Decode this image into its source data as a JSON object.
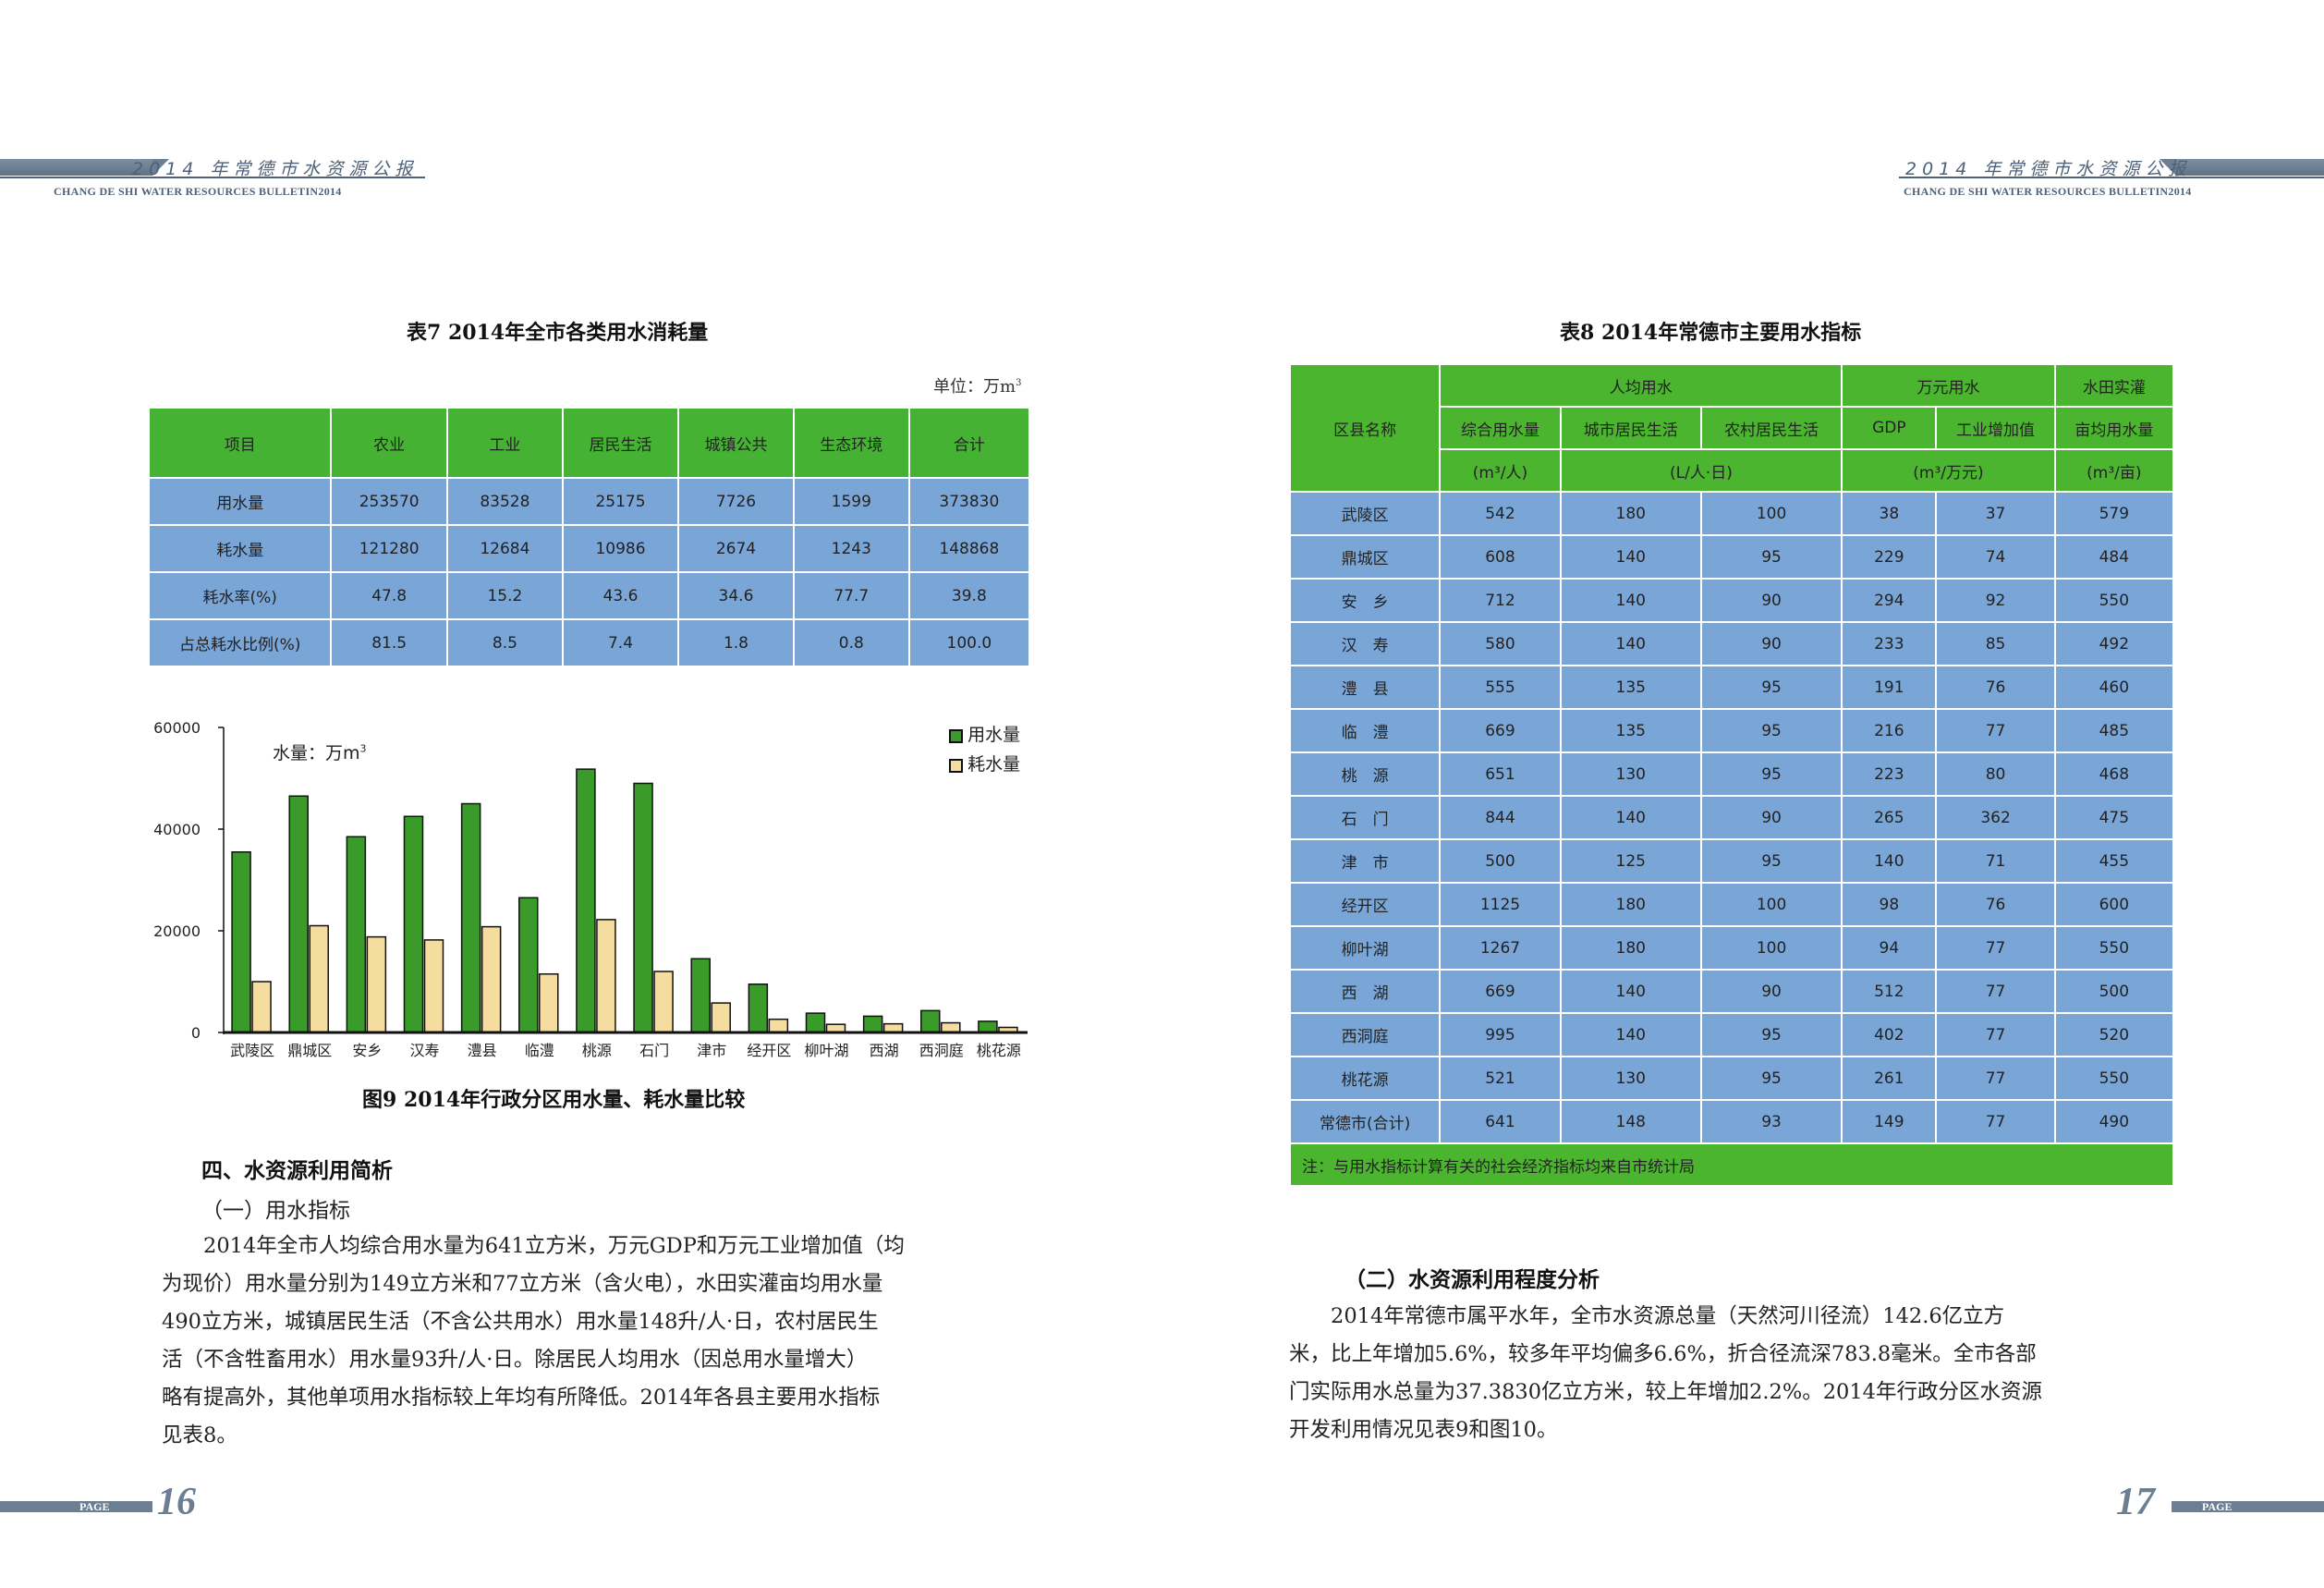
{
  "header": {
    "title": "2014 年常德市水资源公报",
    "subtitle": "CHANG DE SHI WATER RESOURCES BULLETIN2014"
  },
  "table7": {
    "caption": "表7   2014年全市各类用水消耗量",
    "unit_label": "单位：万m",
    "unit_sup": "3",
    "headers": [
      "项目",
      "农业",
      "工业",
      "居民生活",
      "城镇公共",
      "生态环境",
      "合计"
    ],
    "rows": [
      [
        "用水量",
        "253570",
        "83528",
        "25175",
        "7726",
        "1599",
        "373830"
      ],
      [
        "耗水量",
        "121280",
        "12684",
        "10986",
        "2674",
        "1243",
        "148868"
      ],
      [
        "耗水率(%)",
        "47.8",
        "15.2",
        "43.6",
        "34.6",
        "77.7",
        "39.8"
      ],
      [
        "占总耗水比例(%)",
        "81.5",
        "8.5",
        "7.4",
        "1.8",
        "0.8",
        "100.0"
      ]
    ]
  },
  "chart_data": {
    "type": "bar",
    "title": "图9   2014年行政分区用水量、耗水量比较",
    "ylabel": "水量：万m",
    "ylabel_sup": "3",
    "ylim": [
      0,
      60000
    ],
    "yticks": [
      "0",
      "20000",
      "40000",
      "60000"
    ],
    "categories": [
      "武陵区",
      "鼎城区",
      "安乡",
      "汉寿",
      "澧县",
      "临澧",
      "桃源",
      "石门",
      "津市",
      "经开区",
      "柳叶湖",
      "西湖",
      "西洞庭",
      "桃花源"
    ],
    "series": [
      {
        "name": "用水量",
        "color": "#3a9a2a",
        "values": [
          35500,
          46500,
          38500,
          42500,
          45000,
          26500,
          51800,
          49000,
          14500,
          9500,
          3800,
          3200,
          4300,
          2200
        ]
      },
      {
        "name": "耗水量",
        "color": "#f5dc9f",
        "values": [
          10000,
          21000,
          18800,
          18200,
          20800,
          11500,
          22200,
          12000,
          5800,
          2600,
          1600,
          1700,
          1900,
          1000
        ]
      }
    ],
    "legend_position": "top-right",
    "grid": false
  },
  "section4": {
    "title": "四、水资源利用简析",
    "subtitle": "（一）用水指标",
    "lines": [
      "　　2014年全市人均综合用水量为641立方米，万元GDP和万元工业增加值（均",
      "为现价）用水量分别为149立方米和77立方米（含火电），水田实灌亩均用水量",
      "490立方米，城镇居民生活（不含公共用水）用水量148升/人·日，农村居民生",
      "活（不含牲畜用水）用水量93升/人·日。除居民人均用水（因总用水量增大）",
      "略有提高外，其他单项用水指标较上年均有所降低。2014年各县主要用水指标",
      "见表8。"
    ]
  },
  "table8": {
    "caption": "表8   2014年常德市主要用水指标",
    "h_region": "区县名称",
    "h_per_capita": "人均用水",
    "h_per_10k": "万元用水",
    "h_paddy_1": "水田实灌",
    "h_paddy_2": "亩均用水量",
    "h_total": "综合用水量",
    "h_urban": "城市居民生活",
    "h_rural": "农村居民生活",
    "h_gdp": "GDP",
    "h_ind": "工业增加值",
    "u_total": "(m³/人)",
    "u_live": "(L/人·日)",
    "u_10k": "(m³/万元)",
    "u_paddy": "(m³/亩)",
    "rows": [
      [
        "武陵区",
        "542",
        "180",
        "100",
        "38",
        "37",
        "579"
      ],
      [
        "鼎城区",
        "608",
        "140",
        "95",
        "229",
        "74",
        "484"
      ],
      [
        "安　乡",
        "712",
        "140",
        "90",
        "294",
        "92",
        "550"
      ],
      [
        "汉　寿",
        "580",
        "140",
        "90",
        "233",
        "85",
        "492"
      ],
      [
        "澧　县",
        "555",
        "135",
        "95",
        "191",
        "76",
        "460"
      ],
      [
        "临　澧",
        "669",
        "135",
        "95",
        "216",
        "77",
        "485"
      ],
      [
        "桃　源",
        "651",
        "130",
        "95",
        "223",
        "80",
        "468"
      ],
      [
        "石　门",
        "844",
        "140",
        "90",
        "265",
        "362",
        "475"
      ],
      [
        "津　市",
        "500",
        "125",
        "95",
        "140",
        "71",
        "455"
      ],
      [
        "经开区",
        "1125",
        "180",
        "100",
        "98",
        "76",
        "600"
      ],
      [
        "柳叶湖",
        "1267",
        "180",
        "100",
        "94",
        "77",
        "550"
      ],
      [
        "西　湖",
        "669",
        "140",
        "90",
        "512",
        "77",
        "500"
      ],
      [
        "西洞庭",
        "995",
        "140",
        "95",
        "402",
        "77",
        "520"
      ],
      [
        "桃花源",
        "521",
        "130",
        "95",
        "261",
        "77",
        "550"
      ],
      [
        "常德市(合计)",
        "641",
        "148",
        "93",
        "149",
        "77",
        "490"
      ]
    ],
    "note": "注：与用水指标计算有关的社会经济指标均来自市统计局"
  },
  "section_b": {
    "title": "（二）水资源利用程度分析",
    "lines": [
      "　　2014年常德市属平水年，全市水资源总量（天然河川径流）142.6亿立方",
      "米，比上年增加5.6%，较多年平均偏多6.6%，折合径流深783.8毫米。全市各部",
      "门实际用水总量为37.3830亿立方米，较上年增加2.2%。2014年行政分区水资源",
      "开发利用情况见表9和图10。"
    ]
  },
  "footer": {
    "page_label": "PAGE",
    "left_page": "16",
    "right_page": "17"
  }
}
